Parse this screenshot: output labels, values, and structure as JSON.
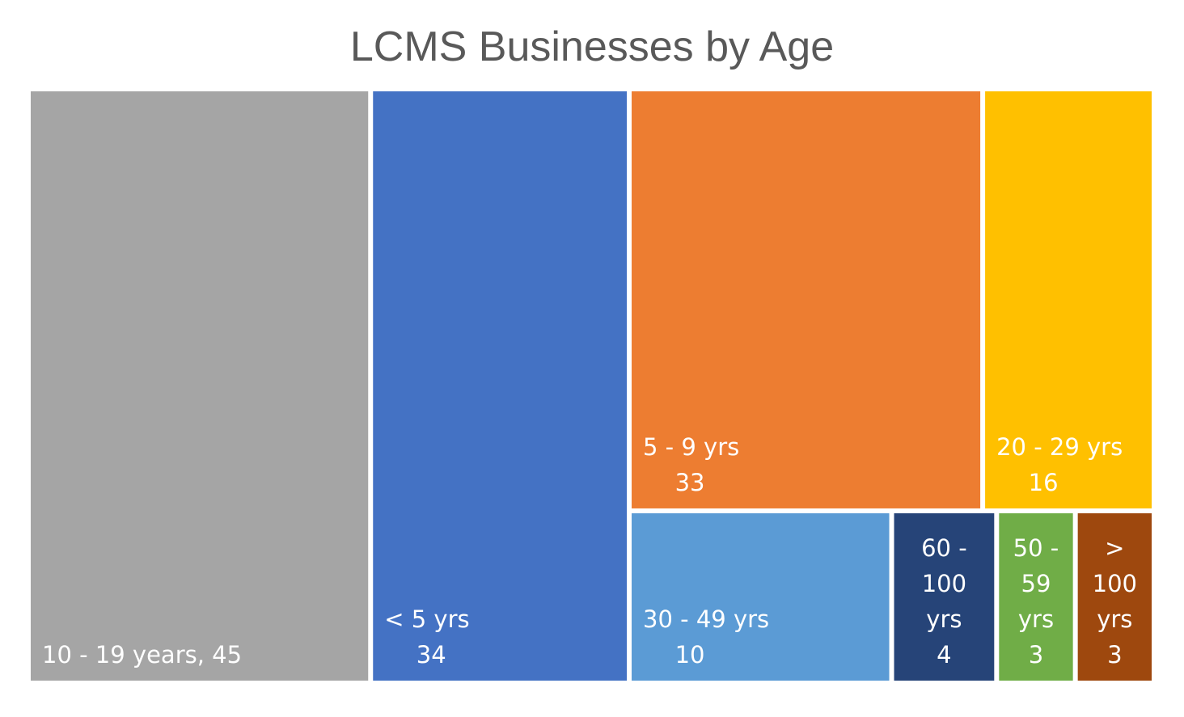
{
  "chart_data": {
    "type": "treemap",
    "title": "LCMS Businesses by Age",
    "items": [
      {
        "label": "10 - 19 years",
        "value": 45,
        "color": "#A5A5A5"
      },
      {
        "label": "< 5 yrs",
        "value": 34,
        "color": "#4472C4"
      },
      {
        "label": "5 - 9 yrs",
        "value": 33,
        "color": "#ED7D31"
      },
      {
        "label": "20 - 29 yrs",
        "value": 16,
        "color": "#FFC000"
      },
      {
        "label": "30 - 49 yrs",
        "value": 10,
        "color": "#5B9BD5"
      },
      {
        "label": "60 - 100 yrs",
        "value": 4,
        "color": "#264478"
      },
      {
        "label": "50 - 59 yrs",
        "value": 3,
        "color": "#70AD47"
      },
      {
        "label": "> 100 yrs",
        "value": 3,
        "color": "#9E480E"
      }
    ]
  }
}
